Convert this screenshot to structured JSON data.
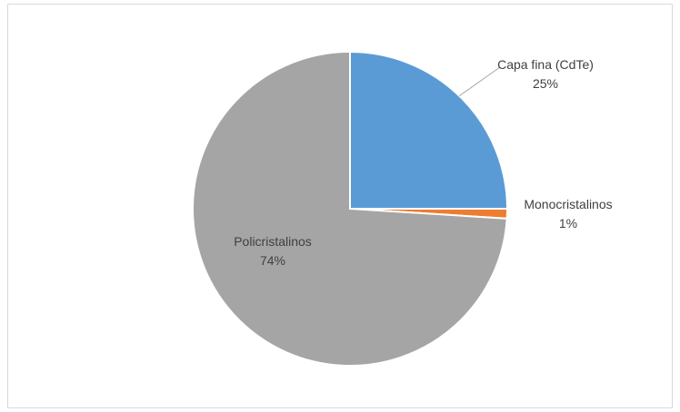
{
  "chart_data": {
    "type": "pie",
    "title": "",
    "slices": [
      {
        "name": "Capa fina (CdTe)",
        "value": 25,
        "percent_label": "25%",
        "color": "#5B9BD5"
      },
      {
        "name": "Monocristalinos",
        "value": 1,
        "percent_label": "1%",
        "color": "#ED7D31"
      },
      {
        "name": "Policristalinos",
        "value": 74,
        "percent_label": "74%",
        "color": "#A5A5A5"
      }
    ],
    "start_angle_deg": 0,
    "direction": "clockwise",
    "legend": "none",
    "data_labels": "category and percentage",
    "slice_border_color": "#ffffff"
  }
}
